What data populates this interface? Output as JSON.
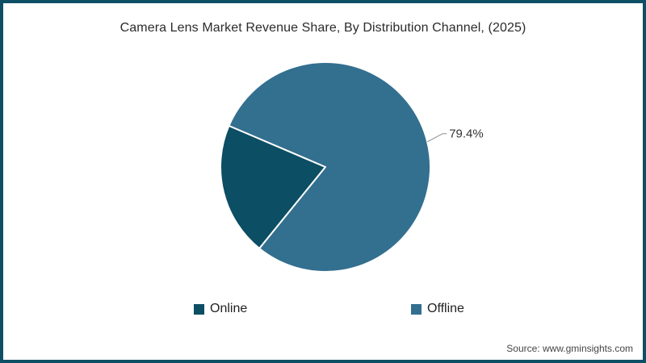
{
  "chart_data": {
    "type": "pie",
    "title": "Camera Lens Market Revenue Share, By Distribution Channel, (2025)",
    "unit": "%",
    "slices": [
      {
        "label": "Online",
        "value": 20.6,
        "color": "#0c4e63",
        "data_label": ""
      },
      {
        "label": "Offline",
        "value": 79.4,
        "color": "#336f8f",
        "data_label": "79.4%"
      }
    ],
    "start_angle_deg": 219,
    "slice_border_color": "#ffffff",
    "legend_position": "bottom",
    "legend_labels": [
      "Online",
      "Offline"
    ]
  },
  "source": "Source: www.gminsights.com",
  "frame": {
    "border_color": "#0e4f66",
    "background": "#ffffff"
  }
}
